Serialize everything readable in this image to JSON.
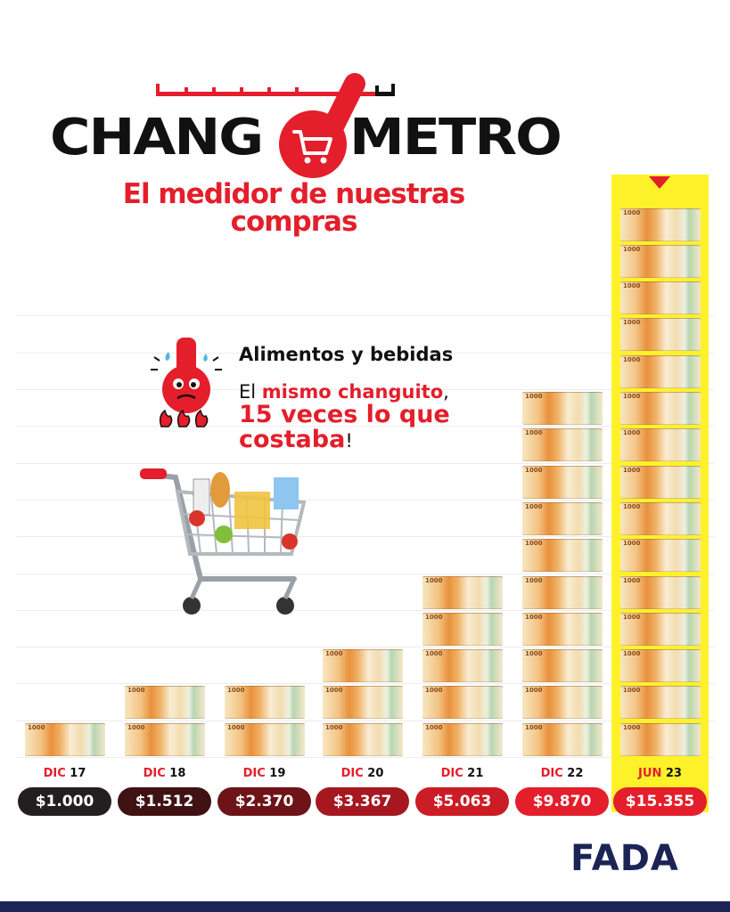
{
  "header": {
    "logo_left": "CHANG",
    "logo_right": "METRO",
    "subtitle_line1": "El medidor de nuestras",
    "subtitle_line2": "compras"
  },
  "info": {
    "category": "Alimentos y bebidas",
    "line1_prefix": "El ",
    "line1_highlight": "mismo changuito",
    "line1_suffix": ",",
    "line2": "15 veces lo que",
    "line3_highlight": "costaba",
    "line3_suffix": "!"
  },
  "brand": {
    "name": "FADA"
  },
  "bill_text": "1000",
  "colors": {
    "red": "#e41e2b",
    "highlight": "#fdf22a",
    "navy": "#1b2455"
  },
  "chart_data": {
    "type": "bar",
    "title": "",
    "xlabel": "",
    "ylabel": "",
    "categories": [
      "DIC 17",
      "DIC 18",
      "DIC 19",
      "DIC 20",
      "DIC 21",
      "DIC 22",
      "JUN 23"
    ],
    "category_parts": [
      {
        "m": "DIC",
        "y": "17"
      },
      {
        "m": "DIC",
        "y": "18"
      },
      {
        "m": "DIC",
        "y": "19"
      },
      {
        "m": "DIC",
        "y": "20"
      },
      {
        "m": "DIC",
        "y": "21"
      },
      {
        "m": "DIC",
        "y": "22"
      },
      {
        "m": "JUN",
        "y": "23"
      }
    ],
    "values": [
      1000,
      1512,
      2370,
      3367,
      5063,
      9870,
      15355
    ],
    "value_labels": [
      "$1.000",
      "$1.512",
      "$2.370",
      "$3.367",
      "$5.063",
      "$9.870",
      "$15.355"
    ],
    "pill_colors": [
      "#231f20",
      "#3f1214",
      "#6e1418",
      "#a51820",
      "#cc1c25",
      "#e41e2b",
      "#e41e2b"
    ],
    "highlighted_category": "JUN 23",
    "ylim": [
      0,
      15355
    ],
    "grid": true
  }
}
